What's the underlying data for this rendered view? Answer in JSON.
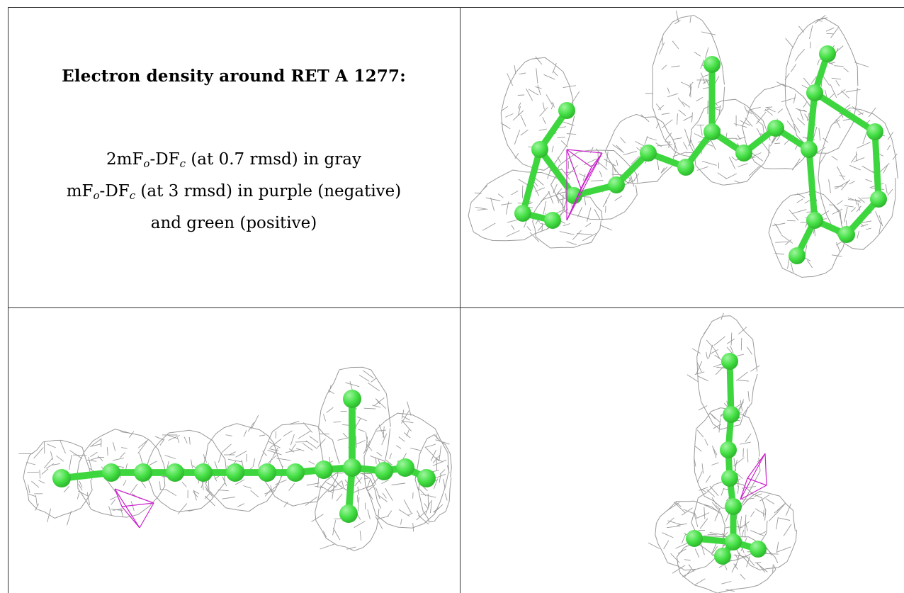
{
  "caption": {
    "title": "Electron density around RET A 1277:",
    "line1": {
      "a": "2mF",
      "a_sub": "o",
      "b": "-DF",
      "b_sub": "c",
      "rest": " (at 0.7 rmsd) in gray"
    },
    "line2": {
      "a": "mF",
      "a_sub": "o",
      "b": "-DF",
      "b_sub": "c",
      "rest": " (at 3 rmsd) in purple (negative)"
    },
    "line3": "and green (positive)"
  },
  "colors": {
    "mesh": "#9a9a9a",
    "atom": "#44e044",
    "atom_highlight": "#9ff59f",
    "bond": "#3ed63e",
    "negative_density": "#cc22cc",
    "border": "#333333"
  },
  "views": [
    {
      "name": "view-top-right",
      "molecule": "RET A 1277"
    },
    {
      "name": "view-bottom-left",
      "molecule": "RET A 1277"
    },
    {
      "name": "view-bottom-right",
      "molecule": "RET A 1277"
    }
  ]
}
